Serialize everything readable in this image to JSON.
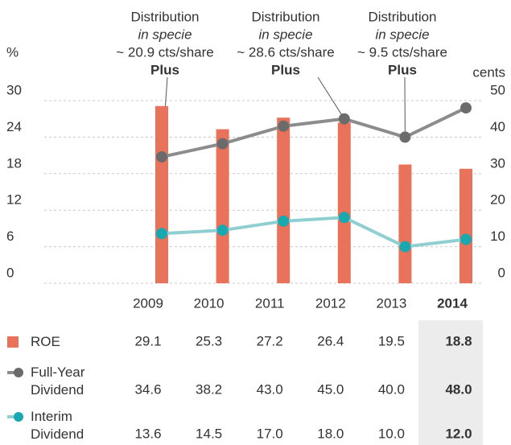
{
  "chart_data": {
    "type": "bar_line",
    "y_label": "%",
    "y2_label": "cents",
    "categories": [
      "2009",
      "2010",
      "2011",
      "2012",
      "2013",
      "2014"
    ],
    "ylim": [
      0,
      30
    ],
    "yticks": [
      0,
      6,
      12,
      18,
      24,
      30
    ],
    "y2lim": [
      0,
      50
    ],
    "y2ticks": [
      0,
      10,
      20,
      30,
      40,
      50
    ],
    "grid": true,
    "series": [
      {
        "name": "ROE",
        "type": "bar",
        "color": "#e8735a",
        "values": [
          29.1,
          25.3,
          27.2,
          26.4,
          19.5,
          18.8
        ]
      },
      {
        "name": "Full-Year Dividend",
        "type": "line",
        "axis": "y2",
        "color": "#8c8c8c",
        "marker_color": "#6b6b6b",
        "values": [
          34.6,
          38.2,
          43.0,
          45.0,
          40.0,
          48.0
        ],
        "value_labels": [
          "34.6",
          "38.2",
          "43.0",
          "45.0",
          "40.0",
          "48.0"
        ]
      },
      {
        "name": "Interim Dividend",
        "type": "line",
        "axis": "y2",
        "color": "#8fcfd2",
        "marker_color": "#1aa8b0",
        "values": [
          13.6,
          14.5,
          17.0,
          18.0,
          10.0,
          12.0
        ],
        "value_labels": [
          "13.6",
          "14.5",
          "17.0",
          "18.0",
          "10.0",
          "12.0"
        ]
      }
    ],
    "annotations": [
      {
        "lines": [
          "Distribution",
          "in specie",
          "~ 20.9 cts/share",
          "Plus"
        ]
      },
      {
        "lines": [
          "Distribution",
          "in specie",
          "~ 28.6 cts/share",
          "Plus"
        ]
      },
      {
        "lines": [
          "Distribution",
          "in specie",
          "~ 9.5 cts/share",
          "Plus"
        ]
      }
    ]
  }
}
